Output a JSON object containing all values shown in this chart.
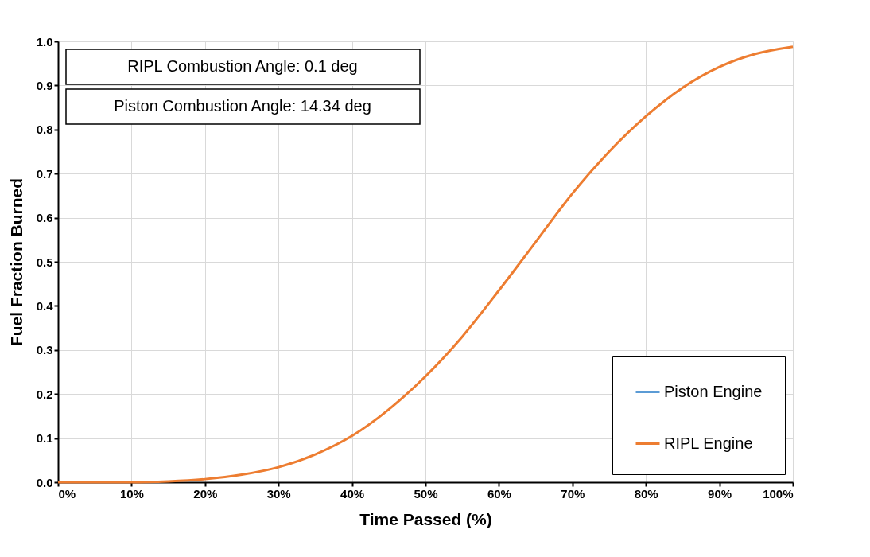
{
  "chart_data": {
    "type": "line",
    "xlabel": "Time Passed (%)",
    "ylabel": "Fuel Fraction Burned",
    "annotations": [
      "RIPL Combustion Angle: 0.1 deg",
      "Piston Combustion Angle: 14.34 deg"
    ],
    "x": [
      0,
      5,
      10,
      15,
      20,
      25,
      30,
      35,
      40,
      45,
      50,
      55,
      60,
      65,
      70,
      75,
      80,
      85,
      90,
      95,
      100
    ],
    "series": [
      {
        "name": "Piston Engine",
        "color": "#5b9bd5",
        "values": [
          null,
          null,
          null,
          null,
          null,
          null,
          null,
          null,
          null,
          null,
          null,
          null,
          null,
          null,
          null,
          null,
          null,
          null,
          null,
          null,
          null
        ]
      },
      {
        "name": "RIPL Engine",
        "color": "#ed7d31",
        "values": [
          0,
          0,
          0,
          0.002,
          0.007,
          0.017,
          0.034,
          0.063,
          0.105,
          0.165,
          0.24,
          0.33,
          0.435,
          0.545,
          0.655,
          0.75,
          0.83,
          0.895,
          0.942,
          0.972,
          0.988
        ]
      }
    ],
    "xlim": [
      0,
      100
    ],
    "xticks": [
      {
        "value": 0,
        "label": "0%"
      },
      {
        "value": 10,
        "label": "10%"
      },
      {
        "value": 20,
        "label": "20%"
      },
      {
        "value": 30,
        "label": "30%"
      },
      {
        "value": 40,
        "label": "40%"
      },
      {
        "value": 50,
        "label": "50%"
      },
      {
        "value": 60,
        "label": "60%"
      },
      {
        "value": 70,
        "label": "70%"
      },
      {
        "value": 80,
        "label": "80%"
      },
      {
        "value": 90,
        "label": "90%"
      },
      {
        "value": 100,
        "label": "100%"
      }
    ],
    "ylim": [
      0,
      1
    ],
    "yticks": [
      {
        "value": 0,
        "label": "0.0"
      },
      0.1,
      0.2,
      0.3,
      0.4,
      0.5,
      0.6,
      0.7,
      0.8,
      0.9,
      {
        "value": 1,
        "label": "1.0"
      }
    ],
    "grid": true,
    "legend": "bottom right",
    "marker": "none",
    "line_style": "solid"
  }
}
